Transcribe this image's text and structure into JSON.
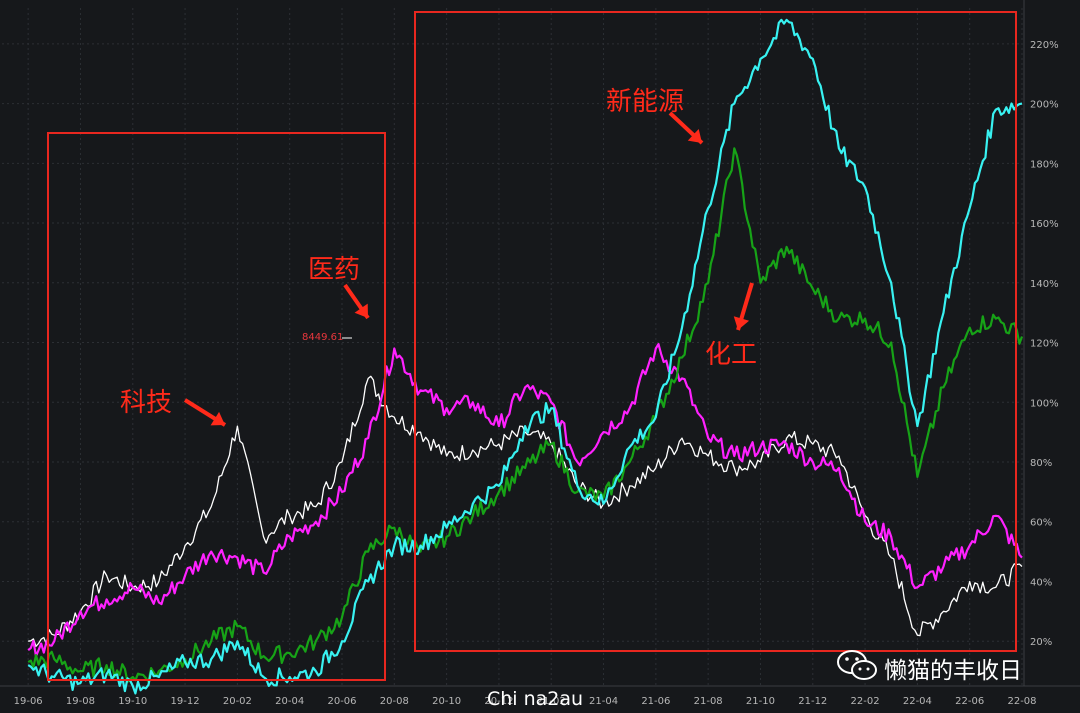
{
  "chart_data": {
    "type": "line",
    "x_ticks": [
      "19-06",
      "19-08",
      "19-10",
      "19-12",
      "20-02",
      "20-04",
      "20-06",
      "20-08",
      "20-10",
      "20-12",
      "21-02",
      "21-04",
      "21-06",
      "21-08",
      "21-10",
      "21-12",
      "22-02",
      "22-04",
      "22-06",
      "22-08"
    ],
    "y_ticks": [
      "20%",
      "40%",
      "60%",
      "80%",
      "100%",
      "120%",
      "140%",
      "160%",
      "180%",
      "200%",
      "220%"
    ],
    "ylim": [
      5,
      232
    ],
    "grid": true,
    "y_axis_side": "right",
    "series": [
      {
        "color": "#ffffff",
        "width": 1.3,
        "points": [
          [
            "19-06",
            20
          ],
          [
            "19-07",
            22
          ],
          [
            "19-08",
            30
          ],
          [
            "19-09",
            42
          ],
          [
            "19-10",
            38
          ],
          [
            "19-11",
            40
          ],
          [
            "19-12",
            52
          ],
          [
            "20-01",
            65
          ],
          [
            "20-02",
            92
          ],
          [
            "20-03",
            55
          ],
          [
            "20-04",
            62
          ],
          [
            "20-05",
            65
          ],
          [
            "20-06",
            80
          ],
          [
            "20-07",
            108
          ],
          [
            "20-08",
            95
          ],
          [
            "20-09",
            90
          ],
          [
            "20-10",
            82
          ],
          [
            "20-11",
            84
          ],
          [
            "20-12",
            86
          ],
          [
            "21-01",
            90
          ],
          [
            "21-02",
            86
          ],
          [
            "21-03",
            72
          ],
          [
            "21-04",
            66
          ],
          [
            "21-05",
            72
          ],
          [
            "21-06",
            78
          ],
          [
            "21-07",
            88
          ],
          [
            "21-08",
            82
          ],
          [
            "21-09",
            78
          ],
          [
            "21-10",
            80
          ],
          [
            "21-11",
            88
          ],
          [
            "21-12",
            86
          ],
          [
            "22-01",
            82
          ],
          [
            "22-02",
            62
          ],
          [
            "22-03",
            48
          ],
          [
            "22-04",
            22
          ],
          [
            "22-05",
            30
          ],
          [
            "22-06",
            40
          ],
          [
            "22-07",
            38
          ],
          [
            "22-08",
            45
          ]
        ]
      },
      {
        "color": "#ff21ff",
        "width": 2.2,
        "points": [
          [
            "19-06",
            17
          ],
          [
            "19-07",
            20
          ],
          [
            "19-08",
            30
          ],
          [
            "19-09",
            34
          ],
          [
            "19-10",
            38
          ],
          [
            "19-11",
            33
          ],
          [
            "19-12",
            42
          ],
          [
            "20-01",
            50
          ],
          [
            "20-02",
            48
          ],
          [
            "20-03",
            43
          ],
          [
            "20-04",
            55
          ],
          [
            "20-05",
            60
          ],
          [
            "20-06",
            70
          ],
          [
            "20-07",
            88
          ],
          [
            "20-08",
            118
          ],
          [
            "20-09",
            104
          ],
          [
            "20-10",
            98
          ],
          [
            "20-11",
            100
          ],
          [
            "20-12",
            92
          ],
          [
            "21-01",
            105
          ],
          [
            "21-02",
            100
          ],
          [
            "21-03",
            80
          ],
          [
            "21-04",
            90
          ],
          [
            "21-05",
            98
          ],
          [
            "21-06",
            118
          ],
          [
            "21-07",
            108
          ],
          [
            "21-08",
            88
          ],
          [
            "21-09",
            82
          ],
          [
            "21-10",
            85
          ],
          [
            "21-11",
            86
          ],
          [
            "21-12",
            80
          ],
          [
            "22-01",
            78
          ],
          [
            "22-02",
            60
          ],
          [
            "22-03",
            55
          ],
          [
            "22-04",
            38
          ],
          [
            "22-05",
            45
          ],
          [
            "22-06",
            52
          ],
          [
            "22-07",
            62
          ],
          [
            "22-08",
            48
          ]
        ]
      },
      {
        "color": "#17a317",
        "width": 2.2,
        "points": [
          [
            "19-06",
            13
          ],
          [
            "19-07",
            14
          ],
          [
            "19-08",
            10
          ],
          [
            "19-09",
            12
          ],
          [
            "19-10",
            8
          ],
          [
            "19-11",
            10
          ],
          [
            "19-12",
            14
          ],
          [
            "20-01",
            20
          ],
          [
            "20-02",
            25
          ],
          [
            "20-03",
            15
          ],
          [
            "20-04",
            16
          ],
          [
            "20-05",
            20
          ],
          [
            "20-06",
            28
          ],
          [
            "20-07",
            50
          ],
          [
            "20-08",
            58
          ],
          [
            "20-09",
            50
          ],
          [
            "20-10",
            55
          ],
          [
            "20-11",
            62
          ],
          [
            "20-12",
            70
          ],
          [
            "21-01",
            78
          ],
          [
            "21-02",
            86
          ],
          [
            "21-03",
            70
          ],
          [
            "21-04",
            68
          ],
          [
            "21-05",
            80
          ],
          [
            "21-06",
            95
          ],
          [
            "21-07",
            115
          ],
          [
            "21-08",
            140
          ],
          [
            "21-09",
            185
          ],
          [
            "21-10",
            140
          ],
          [
            "21-11",
            152
          ],
          [
            "21-12",
            138
          ],
          [
            "22-01",
            128
          ],
          [
            "22-02",
            128
          ],
          [
            "22-03",
            120
          ],
          [
            "22-04",
            75
          ],
          [
            "22-05",
            105
          ],
          [
            "22-06",
            125
          ],
          [
            "22-07",
            128
          ],
          [
            "22-08",
            122
          ]
        ]
      },
      {
        "color": "#38f2f2",
        "width": 2.2,
        "points": [
          [
            "19-06",
            12
          ],
          [
            "19-07",
            8
          ],
          [
            "19-08",
            6
          ],
          [
            "19-09",
            9
          ],
          [
            "19-10",
            5
          ],
          [
            "19-11",
            8
          ],
          [
            "19-12",
            13
          ],
          [
            "20-01",
            14
          ],
          [
            "20-02",
            20
          ],
          [
            "20-03",
            8
          ],
          [
            "20-04",
            8
          ],
          [
            "20-05",
            10
          ],
          [
            "20-06",
            20
          ],
          [
            "20-07",
            40
          ],
          [
            "20-08",
            52
          ],
          [
            "20-09",
            52
          ],
          [
            "20-10",
            58
          ],
          [
            "20-11",
            66
          ],
          [
            "20-12",
            72
          ],
          [
            "21-01",
            92
          ],
          [
            "21-02",
            98
          ],
          [
            "21-03",
            72
          ],
          [
            "21-04",
            66
          ],
          [
            "21-05",
            85
          ],
          [
            "21-06",
            95
          ],
          [
            "21-07",
            125
          ],
          [
            "21-08",
            165
          ],
          [
            "21-09",
            200
          ],
          [
            "21-10",
            215
          ],
          [
            "21-11",
            228
          ],
          [
            "21-12",
            215
          ],
          [
            "22-01",
            185
          ],
          [
            "22-02",
            172
          ],
          [
            "22-03",
            140
          ],
          [
            "22-04",
            92
          ],
          [
            "22-05",
            130
          ],
          [
            "22-06",
            165
          ],
          [
            "22-07",
            198
          ],
          [
            "22-08",
            200
          ]
        ]
      }
    ],
    "annotations": [
      "科技",
      "医药",
      "新能源",
      "化工"
    ],
    "peak_label": "8449.61"
  },
  "watermark_source": "Chi na2au",
  "watermark_account": "懒猫的丰收日"
}
